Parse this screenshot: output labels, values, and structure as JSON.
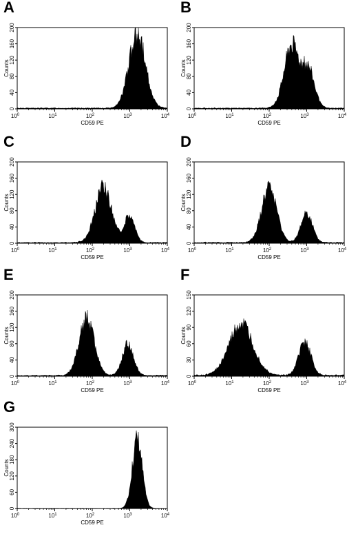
{
  "chart_data": [
    {
      "type": "area",
      "panel_label": "A",
      "xlabel": "CD59 PE",
      "ylabel": "Counts",
      "x_scale": "log",
      "xlim": [
        1,
        10000
      ],
      "x_ticks": [
        {
          "base": "10",
          "exp": "0"
        },
        {
          "base": "10",
          "exp": "1"
        },
        {
          "base": "10",
          "exp": "2"
        },
        {
          "base": "10",
          "exp": "3"
        },
        {
          "base": "10",
          "exp": "4"
        }
      ],
      "ylim": [
        0,
        200
      ],
      "y_ticks": [
        "0",
        "40",
        "80",
        "120",
        "160",
        "200"
      ],
      "peaks": [
        {
          "log10_center": 3.2,
          "width": 0.22,
          "height": 188
        }
      ],
      "baseline": 2,
      "fill_color": "#000000"
    },
    {
      "type": "area",
      "panel_label": "B",
      "xlabel": "CD59 PE",
      "ylabel": "Counts",
      "x_scale": "log",
      "xlim": [
        1,
        10000
      ],
      "x_ticks": [
        {
          "base": "10",
          "exp": "0"
        },
        {
          "base": "10",
          "exp": "1"
        },
        {
          "base": "10",
          "exp": "2"
        },
        {
          "base": "10",
          "exp": "3"
        },
        {
          "base": "10",
          "exp": "4"
        }
      ],
      "ylim": [
        0,
        200
      ],
      "y_ticks": [
        "0",
        "40",
        "80",
        "120",
        "160",
        "200"
      ],
      "peaks": [
        {
          "log10_center": 2.6,
          "width": 0.2,
          "height": 165
        },
        {
          "log10_center": 3.05,
          "width": 0.16,
          "height": 98
        }
      ],
      "baseline": 2,
      "fill_color": "#000000"
    },
    {
      "type": "area",
      "panel_label": "C",
      "xlabel": "CD59 PE",
      "ylabel": "Counts",
      "x_scale": "log",
      "xlim": [
        1,
        10000
      ],
      "x_ticks": [
        {
          "base": "10",
          "exp": "0"
        },
        {
          "base": "10",
          "exp": "1"
        },
        {
          "base": "10",
          "exp": "2"
        },
        {
          "base": "10",
          "exp": "3"
        },
        {
          "base": "10",
          "exp": "4"
        }
      ],
      "ylim": [
        0,
        200
      ],
      "y_ticks": [
        "0",
        "40",
        "80",
        "120",
        "160",
        "200"
      ],
      "peaks": [
        {
          "log10_center": 2.3,
          "width": 0.22,
          "height": 140
        },
        {
          "log10_center": 3.0,
          "width": 0.13,
          "height": 72
        }
      ],
      "baseline": 2,
      "fill_color": "#000000"
    },
    {
      "type": "area",
      "panel_label": "D",
      "xlabel": "CD59 PE",
      "ylabel": "Counts",
      "x_scale": "log",
      "xlim": [
        1,
        10000
      ],
      "x_ticks": [
        {
          "base": "10",
          "exp": "0"
        },
        {
          "base": "10",
          "exp": "1"
        },
        {
          "base": "10",
          "exp": "2"
        },
        {
          "base": "10",
          "exp": "3"
        },
        {
          "base": "10",
          "exp": "4"
        }
      ],
      "ylim": [
        0,
        200
      ],
      "y_ticks": [
        "0",
        "40",
        "80",
        "120",
        "160",
        "200"
      ],
      "peaks": [
        {
          "log10_center": 2.0,
          "width": 0.2,
          "height": 138
        },
        {
          "log10_center": 3.0,
          "width": 0.15,
          "height": 75
        }
      ],
      "baseline": 2,
      "fill_color": "#000000"
    },
    {
      "type": "area",
      "panel_label": "E",
      "xlabel": "CD59 PE",
      "ylabel": "Counts",
      "x_scale": "log",
      "xlim": [
        1,
        10000
      ],
      "x_ticks": [
        {
          "base": "10",
          "exp": "0"
        },
        {
          "base": "10",
          "exp": "1"
        },
        {
          "base": "10",
          "exp": "2"
        },
        {
          "base": "10",
          "exp": "3"
        },
        {
          "base": "10",
          "exp": "4"
        }
      ],
      "ylim": [
        0,
        200
      ],
      "y_ticks": [
        "0",
        "40",
        "80",
        "120",
        "160",
        "200"
      ],
      "peaks": [
        {
          "log10_center": 1.85,
          "width": 0.2,
          "height": 145
        },
        {
          "log10_center": 2.95,
          "width": 0.15,
          "height": 80
        }
      ],
      "baseline": 2,
      "fill_color": "#000000"
    },
    {
      "type": "area",
      "panel_label": "F",
      "xlabel": "CD59 PE",
      "ylabel": "Counts",
      "x_scale": "log",
      "xlim": [
        1,
        10000
      ],
      "x_ticks": [
        {
          "base": "10",
          "exp": "0"
        },
        {
          "base": "10",
          "exp": "1"
        },
        {
          "base": "10",
          "exp": "2"
        },
        {
          "base": "10",
          "exp": "3"
        },
        {
          "base": "10",
          "exp": "4"
        }
      ],
      "ylim": [
        0,
        150
      ],
      "y_ticks": [
        "0",
        "30",
        "60",
        "90",
        "120",
        "150"
      ],
      "peaks": [
        {
          "log10_center": 1.25,
          "width": 0.32,
          "height": 98
        },
        {
          "log10_center": 2.95,
          "width": 0.16,
          "height": 65
        }
      ],
      "baseline": 2,
      "fill_color": "#000000"
    },
    {
      "type": "area",
      "panel_label": "G",
      "xlabel": "CD59 PE",
      "ylabel": "Counts",
      "x_scale": "log",
      "xlim": [
        1,
        10000
      ],
      "x_ticks": [
        {
          "base": "10",
          "exp": "0"
        },
        {
          "base": "10",
          "exp": "1"
        },
        {
          "base": "10",
          "exp": "2"
        },
        {
          "base": "10",
          "exp": "3"
        },
        {
          "base": "10",
          "exp": "4"
        }
      ],
      "ylim": [
        0,
        300
      ],
      "y_ticks": [
        "0",
        "60",
        "120",
        "180",
        "240",
        "300"
      ],
      "peaks": [
        {
          "log10_center": 3.2,
          "width": 0.13,
          "height": 270
        }
      ],
      "baseline": 1,
      "fill_color": "#000000"
    }
  ]
}
